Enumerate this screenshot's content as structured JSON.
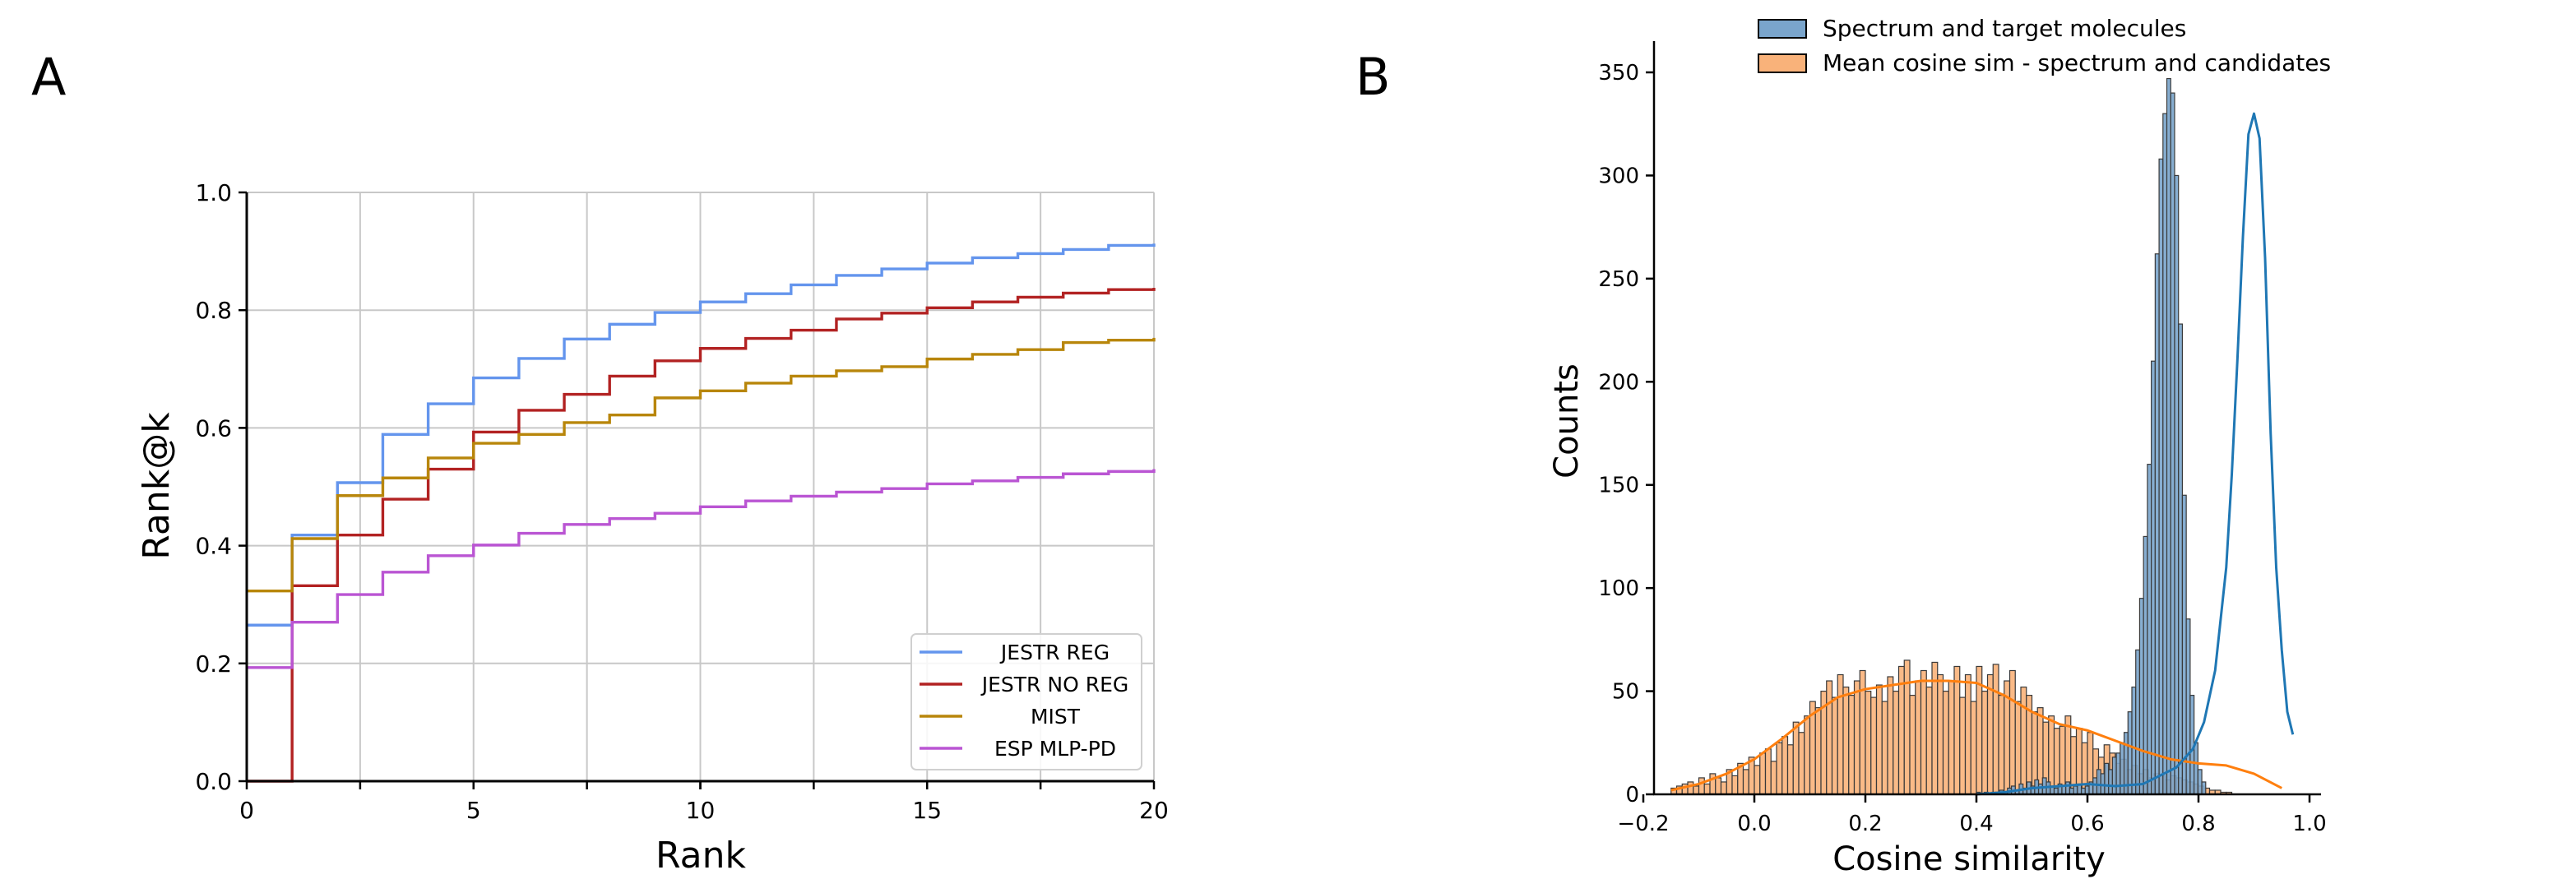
{
  "panel_labels": {
    "a": "A",
    "b": "B"
  },
  "chart_data": [
    {
      "type": "line",
      "step": true,
      "xlabel": "Rank",
      "ylabel": "Rank@k",
      "xlim": [
        0,
        20
      ],
      "ylim": [
        0.0,
        1.0
      ],
      "xticks": [
        0,
        5,
        10,
        15,
        20
      ],
      "xtick_labels": [
        "0",
        "5",
        "10",
        "15",
        "20"
      ],
      "yticks": [
        0.0,
        0.2,
        0.4,
        0.6,
        0.8,
        1.0
      ],
      "ytick_labels": [
        "0.0",
        "0.2",
        "0.4",
        "0.6",
        "0.8",
        "1.0"
      ],
      "grid": true,
      "legend_position": "bottom-right",
      "x": [
        0,
        1,
        2,
        3,
        4,
        5,
        6,
        7,
        8,
        9,
        10,
        11,
        12,
        13,
        14,
        15,
        16,
        17,
        18,
        19,
        20
      ],
      "series": [
        {
          "name": "JESTR REG",
          "color": "#6495ed",
          "values": [
            0.265,
            0.418,
            0.507,
            0.589,
            0.641,
            0.685,
            0.718,
            0.751,
            0.776,
            0.796,
            0.814,
            0.828,
            0.843,
            0.859,
            0.87,
            0.88,
            0.889,
            0.896,
            0.903,
            0.91,
            0.913
          ]
        },
        {
          "name": "JESTR NO REG",
          "color": "#b22222",
          "values": [
            0.0,
            0.332,
            0.418,
            0.479,
            0.53,
            0.593,
            0.63,
            0.657,
            0.688,
            0.714,
            0.735,
            0.752,
            0.766,
            0.785,
            0.795,
            0.804,
            0.814,
            0.822,
            0.829,
            0.835,
            0.838
          ]
        },
        {
          "name": "MIST",
          "color": "#b8860b",
          "values": [
            0.323,
            0.412,
            0.485,
            0.515,
            0.549,
            0.574,
            0.589,
            0.609,
            0.622,
            0.651,
            0.663,
            0.676,
            0.688,
            0.697,
            0.704,
            0.717,
            0.725,
            0.733,
            0.745,
            0.749,
            0.753
          ]
        },
        {
          "name": "ESP MLP-PD",
          "color": "#ba55d3",
          "values": [
            0.193,
            0.27,
            0.317,
            0.355,
            0.383,
            0.401,
            0.421,
            0.436,
            0.446,
            0.455,
            0.466,
            0.476,
            0.484,
            0.491,
            0.497,
            0.505,
            0.51,
            0.516,
            0.522,
            0.526,
            0.53
          ]
        }
      ]
    },
    {
      "type": "histogram",
      "xlabel": "Cosine similarity",
      "ylabel": "Counts",
      "xlim": [
        -0.2,
        1.0
      ],
      "ylim": [
        0,
        350
      ],
      "xticks": [
        -0.2,
        0.0,
        0.2,
        0.4,
        0.6,
        0.8,
        1.0
      ],
      "xtick_labels": [
        "−0.2",
        "0.0",
        "0.2",
        "0.4",
        "0.6",
        "0.8",
        "1.0"
      ],
      "yticks": [
        0,
        50,
        100,
        150,
        200,
        250,
        300,
        350
      ],
      "ytick_labels": [
        "0",
        "50",
        "100",
        "150",
        "200",
        "250",
        "300",
        "350"
      ],
      "legend_position": "top-center",
      "series": [
        {
          "name": "Mean cosine sim - spectrum and candidates",
          "color": "#f9b27a",
          "line_color": "#ff7f0e",
          "bin_start": -0.15,
          "bin_width": 0.01,
          "counts": [
            3,
            4,
            5,
            6,
            4,
            8,
            5,
            10,
            8,
            6,
            12,
            9,
            15,
            12,
            18,
            14,
            20,
            22,
            16,
            25,
            28,
            24,
            35,
            30,
            38,
            45,
            42,
            50,
            55,
            47,
            58,
            52,
            48,
            55,
            60,
            50,
            47,
            53,
            45,
            57,
            50,
            62,
            65,
            48,
            55,
            60,
            52,
            64,
            58,
            50,
            55,
            62,
            47,
            58,
            45,
            62,
            50,
            58,
            63,
            48,
            55,
            60,
            45,
            52,
            48,
            40,
            42,
            35,
            38,
            32,
            33,
            38,
            28,
            32,
            25,
            30,
            22,
            18,
            24,
            20,
            15,
            17,
            12,
            14,
            10,
            12,
            8,
            10,
            9,
            7,
            9,
            8,
            7,
            6,
            5,
            4,
            3,
            2,
            2,
            1,
            1,
            0
          ],
          "kde": [
            [
              -0.15,
              2
            ],
            [
              -0.1,
              5
            ],
            [
              -0.05,
              10
            ],
            [
              0.0,
              17
            ],
            [
              0.05,
              27
            ],
            [
              0.1,
              38
            ],
            [
              0.15,
              47
            ],
            [
              0.2,
              51
            ],
            [
              0.25,
              53
            ],
            [
              0.3,
              55
            ],
            [
              0.35,
              55
            ],
            [
              0.4,
              54
            ],
            [
              0.45,
              48
            ],
            [
              0.5,
              40
            ],
            [
              0.55,
              34
            ],
            [
              0.6,
              31
            ],
            [
              0.65,
              26
            ],
            [
              0.7,
              21
            ],
            [
              0.75,
              17
            ],
            [
              0.8,
              15
            ],
            [
              0.85,
              14
            ],
            [
              0.9,
              10
            ],
            [
              0.95,
              3
            ]
          ]
        },
        {
          "name": "Spectrum and target molecules",
          "color": "#7aa5cc",
          "line_color": "#1f77b4",
          "bin_start": 0.4,
          "bin_width": 0.007,
          "counts": [
            1,
            0,
            1,
            0,
            1,
            1,
            2,
            1,
            3,
            4,
            2,
            5,
            3,
            6,
            4,
            7,
            5,
            8,
            6,
            4,
            3,
            5,
            4,
            6,
            3,
            4,
            5,
            3,
            4,
            6,
            8,
            12,
            10,
            15,
            12,
            18,
            20,
            25,
            30,
            40,
            52,
            70,
            95,
            125,
            160,
            210,
            262,
            308,
            330,
            347,
            340,
            300,
            228,
            145,
            85,
            48,
            25,
            12,
            6
          ],
          "kde": [
            [
              0.4,
              0
            ],
            [
              0.45,
              1
            ],
            [
              0.5,
              3
            ],
            [
              0.55,
              4
            ],
            [
              0.6,
              5
            ],
            [
              0.65,
              4
            ],
            [
              0.7,
              5
            ],
            [
              0.73,
              9
            ],
            [
              0.76,
              13
            ],
            [
              0.79,
              22
            ],
            [
              0.81,
              35
            ],
            [
              0.83,
              60
            ],
            [
              0.85,
              110
            ],
            [
              0.86,
              155
            ],
            [
              0.87,
              210
            ],
            [
              0.88,
              270
            ],
            [
              0.89,
              320
            ],
            [
              0.9,
              330
            ],
            [
              0.91,
              318
            ],
            [
              0.92,
              260
            ],
            [
              0.93,
              175
            ],
            [
              0.94,
              110
            ],
            [
              0.95,
              70
            ],
            [
              0.96,
              40
            ],
            [
              0.97,
              29
            ]
          ]
        }
      ]
    }
  ]
}
